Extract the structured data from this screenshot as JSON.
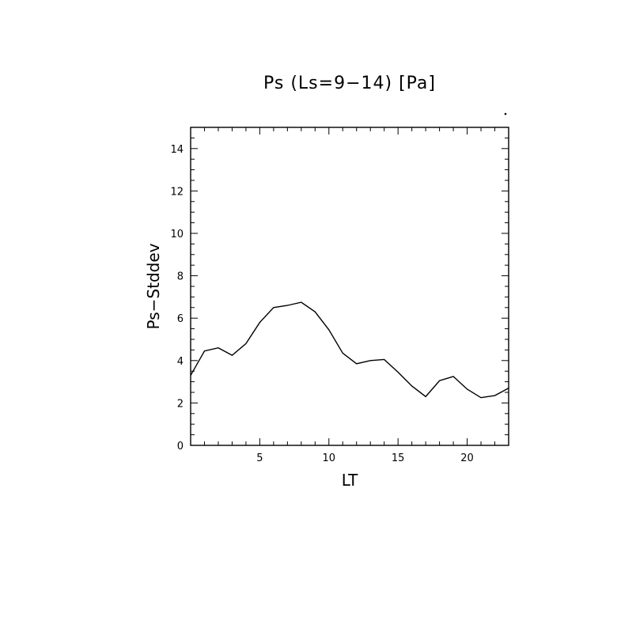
{
  "chart_data": {
    "type": "line",
    "title": "Ps (Ls=9−14) [Pa]",
    "xlabel": "LT",
    "ylabel": "Ps−Stddev",
    "xlim": [
      0,
      23
    ],
    "ylim": [
      0,
      15
    ],
    "x_ticks": [
      5,
      10,
      15,
      20
    ],
    "y_ticks": [
      0,
      2,
      4,
      6,
      8,
      10,
      12,
      14
    ],
    "grid": false,
    "series": [
      {
        "x": [
          0,
          1,
          2,
          3,
          4,
          5,
          6,
          7,
          8,
          9,
          10,
          11,
          12,
          13,
          14,
          15,
          16,
          17,
          18,
          19,
          20,
          21,
          22,
          23
        ],
        "y": [
          3.3,
          4.45,
          4.6,
          4.25,
          4.8,
          5.8,
          6.5,
          6.6,
          6.75,
          6.3,
          5.45,
          4.35,
          3.85,
          4.0,
          4.05,
          3.45,
          2.8,
          2.3,
          3.05,
          3.25,
          2.65,
          2.25,
          2.35,
          2.7
        ],
        "color": "#000000"
      }
    ]
  }
}
